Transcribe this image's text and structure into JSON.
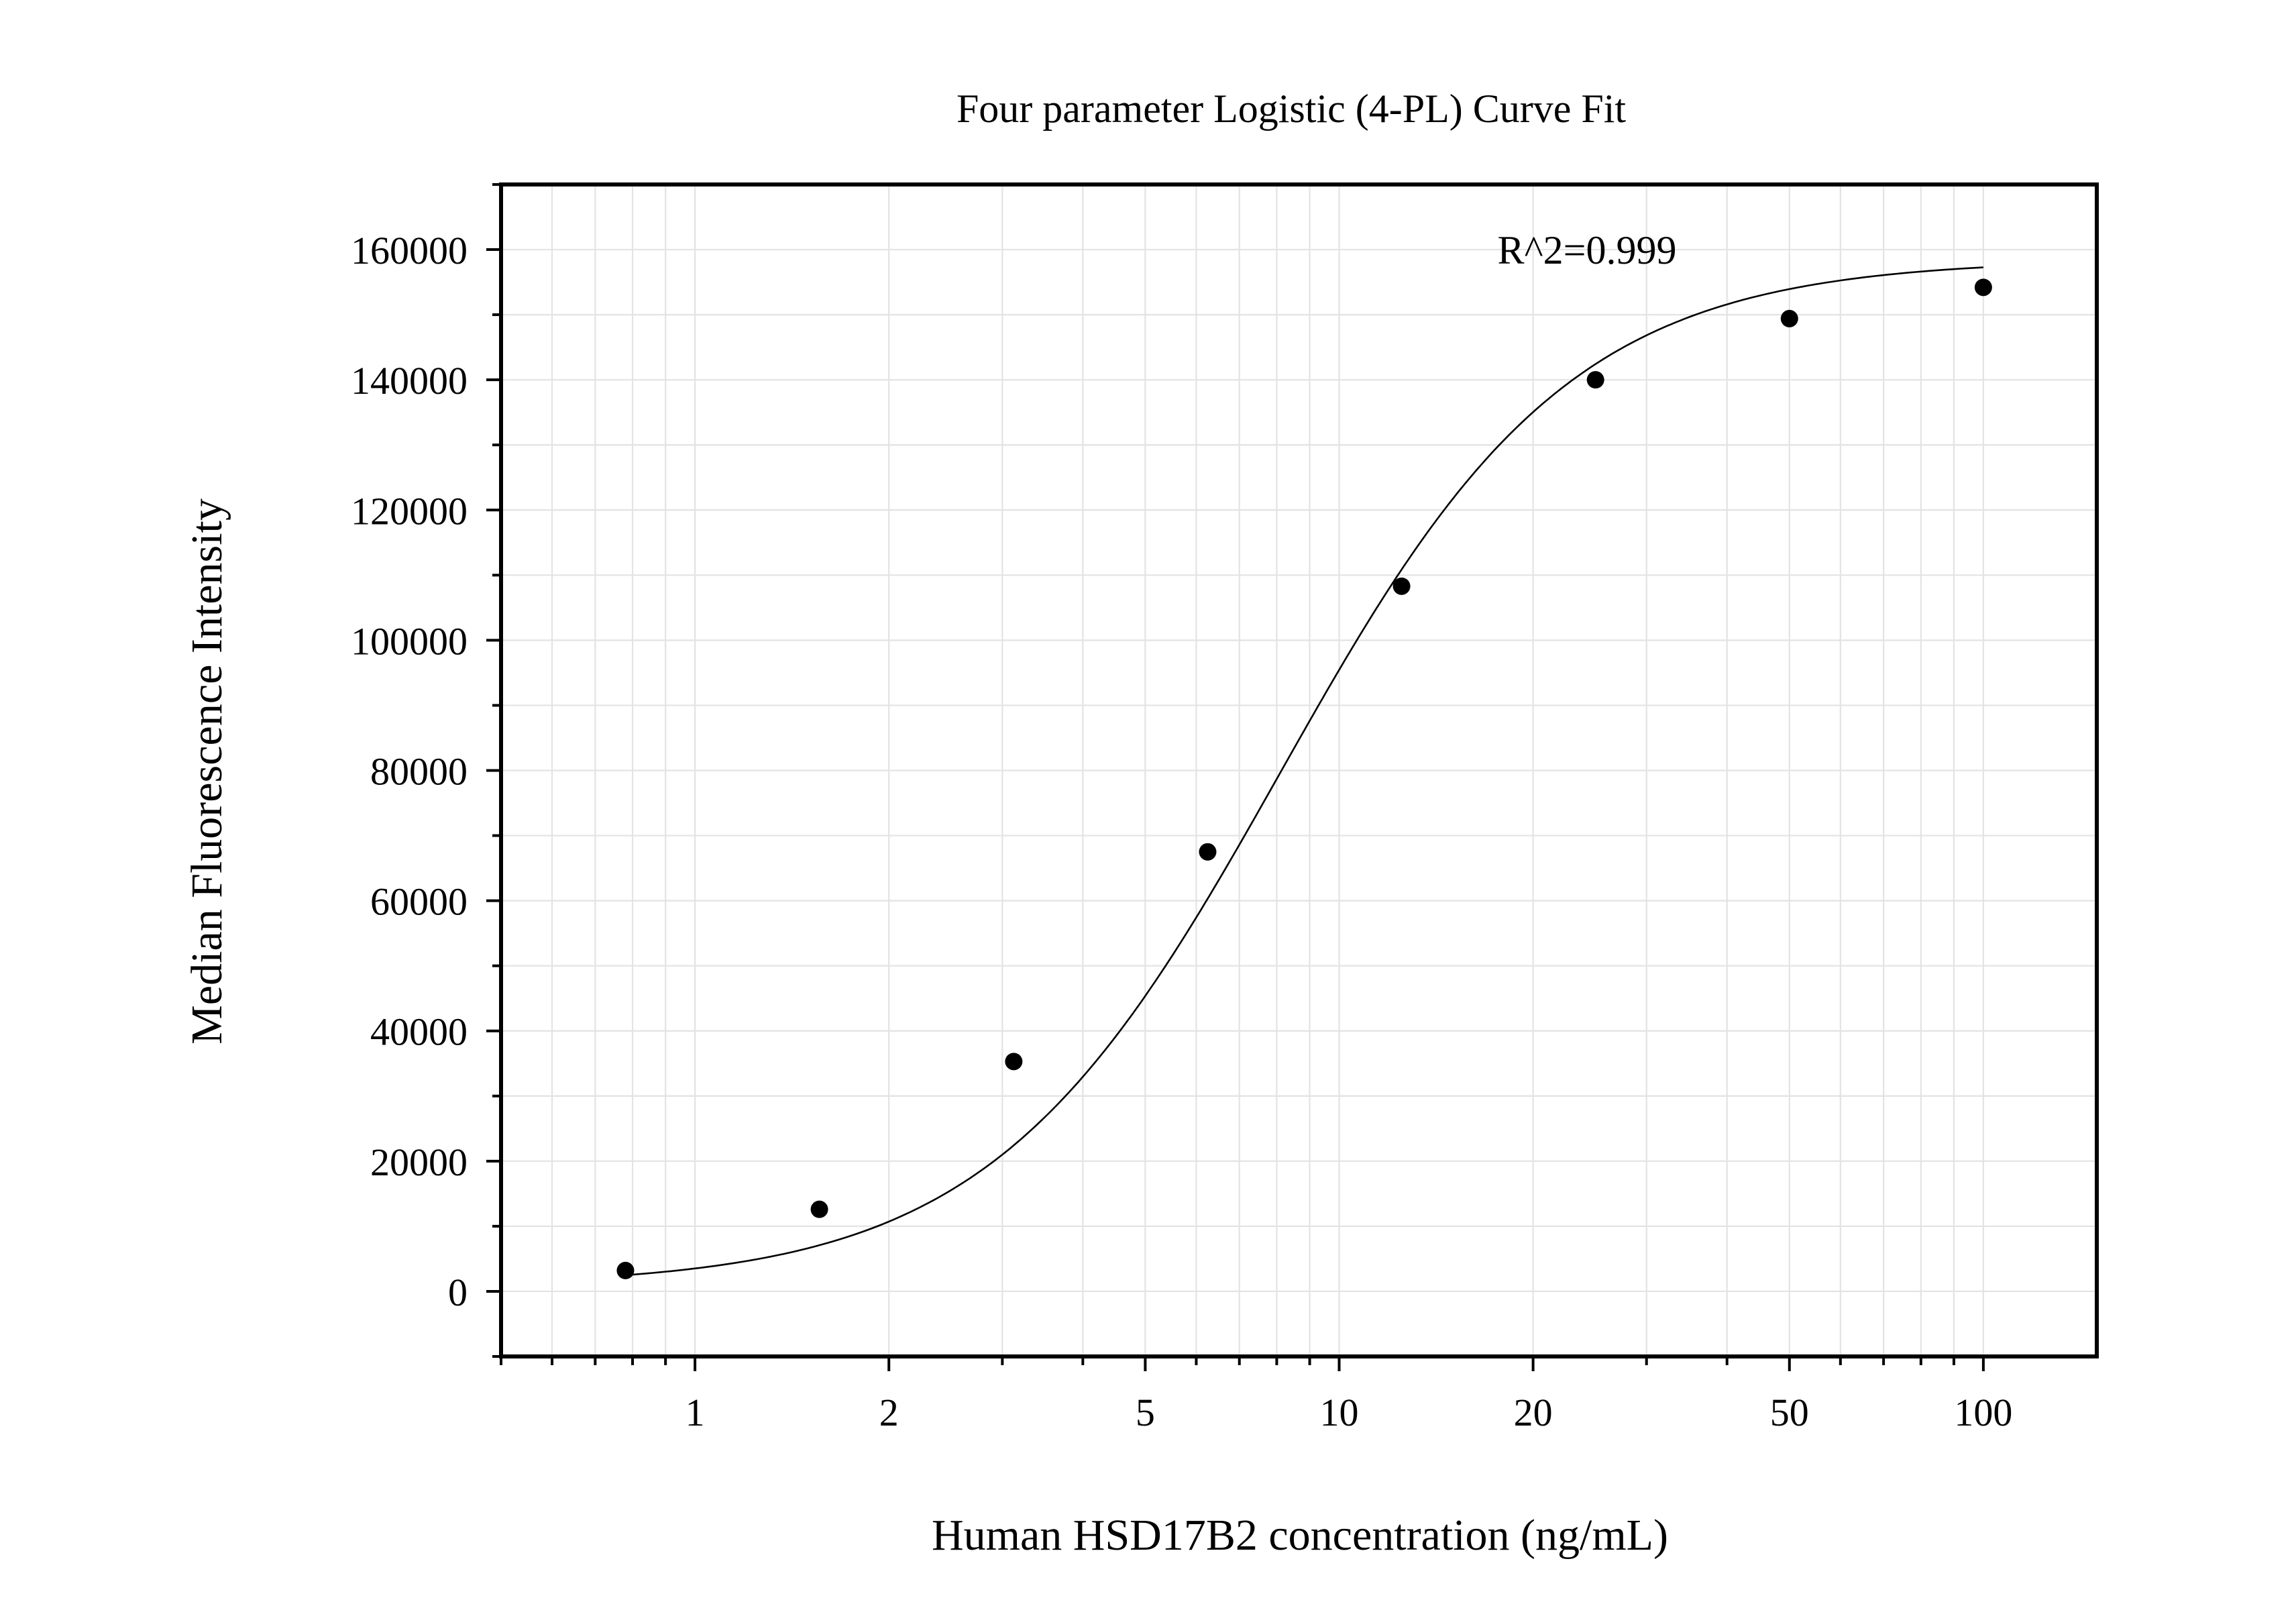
{
  "chart_data": {
    "type": "scatter",
    "title": "Four parameter Logistic (4-PL) Curve Fit",
    "xlabel": "Human HSD17B2 concentration (ng/mL)",
    "ylabel": "Median Fluorescence Intensity",
    "x_scale": "log",
    "xlim": [
      0.5,
      150
    ],
    "ylim": [
      -10000,
      170000
    ],
    "x_ticks": [
      1,
      2,
      5,
      10,
      20,
      50,
      100
    ],
    "x_tick_labels": [
      "1",
      "2",
      "5",
      "10",
      "20",
      "50",
      "100"
    ],
    "y_ticks": [
      0,
      20000,
      40000,
      60000,
      80000,
      100000,
      120000,
      140000,
      160000
    ],
    "y_tick_labels": [
      "0",
      "20000",
      "40000",
      "60000",
      "80000",
      "100000",
      "120000",
      "140000",
      "160000"
    ],
    "grid": true,
    "annotation": "R^2=0.999",
    "series": [
      {
        "kind": "points",
        "x": [
          0.78,
          1.56,
          3.125,
          6.25,
          12.5,
          25,
          50,
          100
        ],
        "y": [
          3200,
          12600,
          35300,
          67500,
          108300,
          140000,
          149400,
          154200
        ]
      },
      {
        "kind": "fit",
        "model": "4PL",
        "params": {
          "A": 780,
          "B": 1.93,
          "C": 8.1,
          "D": 158500
        },
        "x_range": [
          0.78,
          100
        ]
      }
    ]
  }
}
